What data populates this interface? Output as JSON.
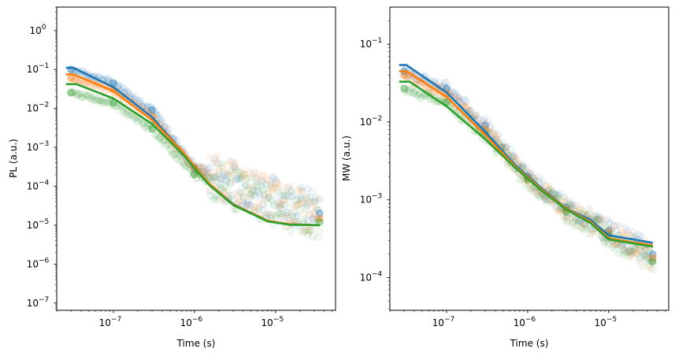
{
  "chart_data": [
    {
      "type": "scatter",
      "xlabel": "Time (s)",
      "ylabel": "PL (a.u.)",
      "xscale": "log",
      "yscale": "log",
      "xlim": [
        2e-08,
        5.5e-05
      ],
      "ylim": [
        6.5e-08,
        4.0
      ],
      "xticks": [
        {
          "v": 1e-07,
          "base": "10",
          "exp": "−7"
        },
        {
          "v": 1e-06,
          "base": "10",
          "exp": "−6"
        },
        {
          "v": 1e-05,
          "base": "10",
          "exp": "−5"
        }
      ],
      "yticks": [
        {
          "v": 1,
          "base": "10",
          "exp": "0"
        },
        {
          "v": 0.1,
          "base": "10",
          "exp": "−1"
        },
        {
          "v": 0.01,
          "base": "10",
          "exp": "−2"
        },
        {
          "v": 0.001,
          "base": "10",
          "exp": "−3"
        },
        {
          "v": 0.0001,
          "base": "10",
          "exp": "−4"
        },
        {
          "v": 1e-05,
          "base": "10",
          "exp": "−5"
        },
        {
          "v": 1e-06,
          "base": "10",
          "exp": "−6"
        },
        {
          "v": 1e-07,
          "base": "10",
          "exp": "−7"
        }
      ],
      "grid": false,
      "legend": "none",
      "series": [
        {
          "color": "#1f77b4",
          "fit": [
            [
              2.6e-08,
              0.11
            ],
            [
              3.2e-08,
              0.11
            ],
            [
              1e-07,
              0.035
            ],
            [
              3e-07,
              0.006
            ],
            [
              7e-07,
              0.0008
            ],
            [
              1.5e-06,
              0.00012
            ],
            [
              3e-06,
              3.5e-05
            ],
            [
              8e-06,
              1.3e-05
            ],
            [
              1.5e-05,
              1.05e-05
            ],
            [
              3.5e-05,
              1e-05
            ]
          ],
          "markers": [
            [
              3e-08,
              0.1
            ],
            [
              1e-07,
              0.045
            ],
            [
              3e-07,
              0.009
            ],
            [
              1e-06,
              0.0003
            ],
            [
              3.5e-05,
              2e-05
            ]
          ]
        },
        {
          "color": "#ff7f0e",
          "fit": [
            [
              2.6e-08,
              0.075
            ],
            [
              3.2e-08,
              0.075
            ],
            [
              1e-07,
              0.028
            ],
            [
              3e-07,
              0.005
            ],
            [
              7e-07,
              0.0008
            ],
            [
              1.5e-06,
              0.00012
            ],
            [
              3e-06,
              3.4e-05
            ],
            [
              8e-06,
              1.3e-05
            ],
            [
              1.5e-05,
              1.05e-05
            ],
            [
              3.5e-05,
              1e-05
            ]
          ],
          "markers": [
            [
              3e-08,
              0.06
            ],
            [
              1e-07,
              0.03
            ],
            [
              3e-07,
              0.006
            ],
            [
              1e-06,
              0.0003
            ],
            [
              3.5e-05,
              1.5e-05
            ]
          ]
        },
        {
          "color": "#2ca02c",
          "fit": [
            [
              2.6e-08,
              0.042
            ],
            [
              3.5e-08,
              0.042
            ],
            [
              1e-07,
              0.018
            ],
            [
              3e-07,
              0.004
            ],
            [
              7e-07,
              0.0007
            ],
            [
              1.5e-06,
              0.00011
            ],
            [
              3e-06,
              3.3e-05
            ],
            [
              8e-06,
              1.25e-05
            ],
            [
              1.5e-05,
              1.03e-05
            ],
            [
              3.5e-05,
              1e-05
            ]
          ],
          "markers": [
            [
              3e-08,
              0.025
            ],
            [
              1e-07,
              0.014
            ],
            [
              3e-07,
              0.003
            ],
            [
              1e-06,
              0.0002
            ],
            [
              3.5e-05,
              1.2e-05
            ]
          ]
        }
      ]
    },
    {
      "type": "scatter",
      "xlabel": "Time (s)",
      "ylabel": "MW (a.u.)",
      "xscale": "log",
      "yscale": "log",
      "xlim": [
        2e-08,
        5.5e-05
      ],
      "ylim": [
        3.8e-05,
        0.3
      ],
      "xticks": [
        {
          "v": 1e-07,
          "base": "10",
          "exp": "−7"
        },
        {
          "v": 1e-06,
          "base": "10",
          "exp": "−6"
        },
        {
          "v": 1e-05,
          "base": "10",
          "exp": "−5"
        }
      ],
      "yticks": [
        {
          "v": 0.1,
          "base": "10",
          "exp": "−1"
        },
        {
          "v": 0.01,
          "base": "10",
          "exp": "−2"
        },
        {
          "v": 0.001,
          "base": "10",
          "exp": "−3"
        },
        {
          "v": 0.0001,
          "base": "10",
          "exp": "−4"
        }
      ],
      "grid": false,
      "legend": "none",
      "series": [
        {
          "color": "#1f77b4",
          "fit": [
            [
              2.6e-08,
              0.054
            ],
            [
              3.2e-08,
              0.054
            ],
            [
              1e-07,
              0.024
            ],
            [
              3e-07,
              0.0075
            ],
            [
              7e-07,
              0.0028
            ],
            [
              1.5e-06,
              0.0014
            ],
            [
              3e-06,
              0.00078
            ],
            [
              6e-06,
              0.00055
            ],
            [
              1e-05,
              0.00035
            ],
            [
              3.5e-05,
              0.00028
            ]
          ],
          "markers": [
            [
              3e-08,
              0.045
            ],
            [
              1e-07,
              0.027
            ],
            [
              3e-07,
              0.009
            ],
            [
              1e-06,
              0.002
            ],
            [
              3e-06,
              0.0008
            ],
            [
              1e-05,
              0.0004
            ],
            [
              3.5e-05,
              0.0002
            ]
          ]
        },
        {
          "color": "#ff7f0e",
          "fit": [
            [
              2.6e-08,
              0.045
            ],
            [
              3.2e-08,
              0.045
            ],
            [
              1e-07,
              0.021
            ],
            [
              3e-07,
              0.0068
            ],
            [
              7e-07,
              0.0027
            ],
            [
              1.5e-06,
              0.00135
            ],
            [
              3e-06,
              0.00077
            ],
            [
              6e-06,
              0.00052
            ],
            [
              1e-05,
              0.00032
            ],
            [
              3.5e-05,
              0.00026
            ]
          ],
          "markers": [
            [
              3e-08,
              0.04
            ],
            [
              1e-07,
              0.023
            ],
            [
              3e-07,
              0.008
            ],
            [
              1e-06,
              0.0019
            ],
            [
              3e-06,
              0.00075
            ],
            [
              1e-05,
              0.00038
            ],
            [
              3.5e-05,
              0.00018
            ]
          ]
        },
        {
          "color": "#2ca02c",
          "fit": [
            [
              2.6e-08,
              0.033
            ],
            [
              3.5e-08,
              0.033
            ],
            [
              1e-07,
              0.016
            ],
            [
              3e-07,
              0.006
            ],
            [
              7e-07,
              0.0026
            ],
            [
              1.5e-06,
              0.0013
            ],
            [
              3e-06,
              0.00075
            ],
            [
              6e-06,
              0.0005
            ],
            [
              1e-05,
              0.00031
            ],
            [
              3.5e-05,
              0.00025
            ]
          ],
          "markers": [
            [
              3e-08,
              0.027
            ],
            [
              1e-07,
              0.018
            ],
            [
              3e-07,
              0.007
            ],
            [
              1e-06,
              0.0018
            ],
            [
              3e-06,
              0.0007
            ],
            [
              1e-05,
              0.00035
            ],
            [
              3.5e-05,
              0.00016
            ]
          ]
        }
      ]
    }
  ]
}
